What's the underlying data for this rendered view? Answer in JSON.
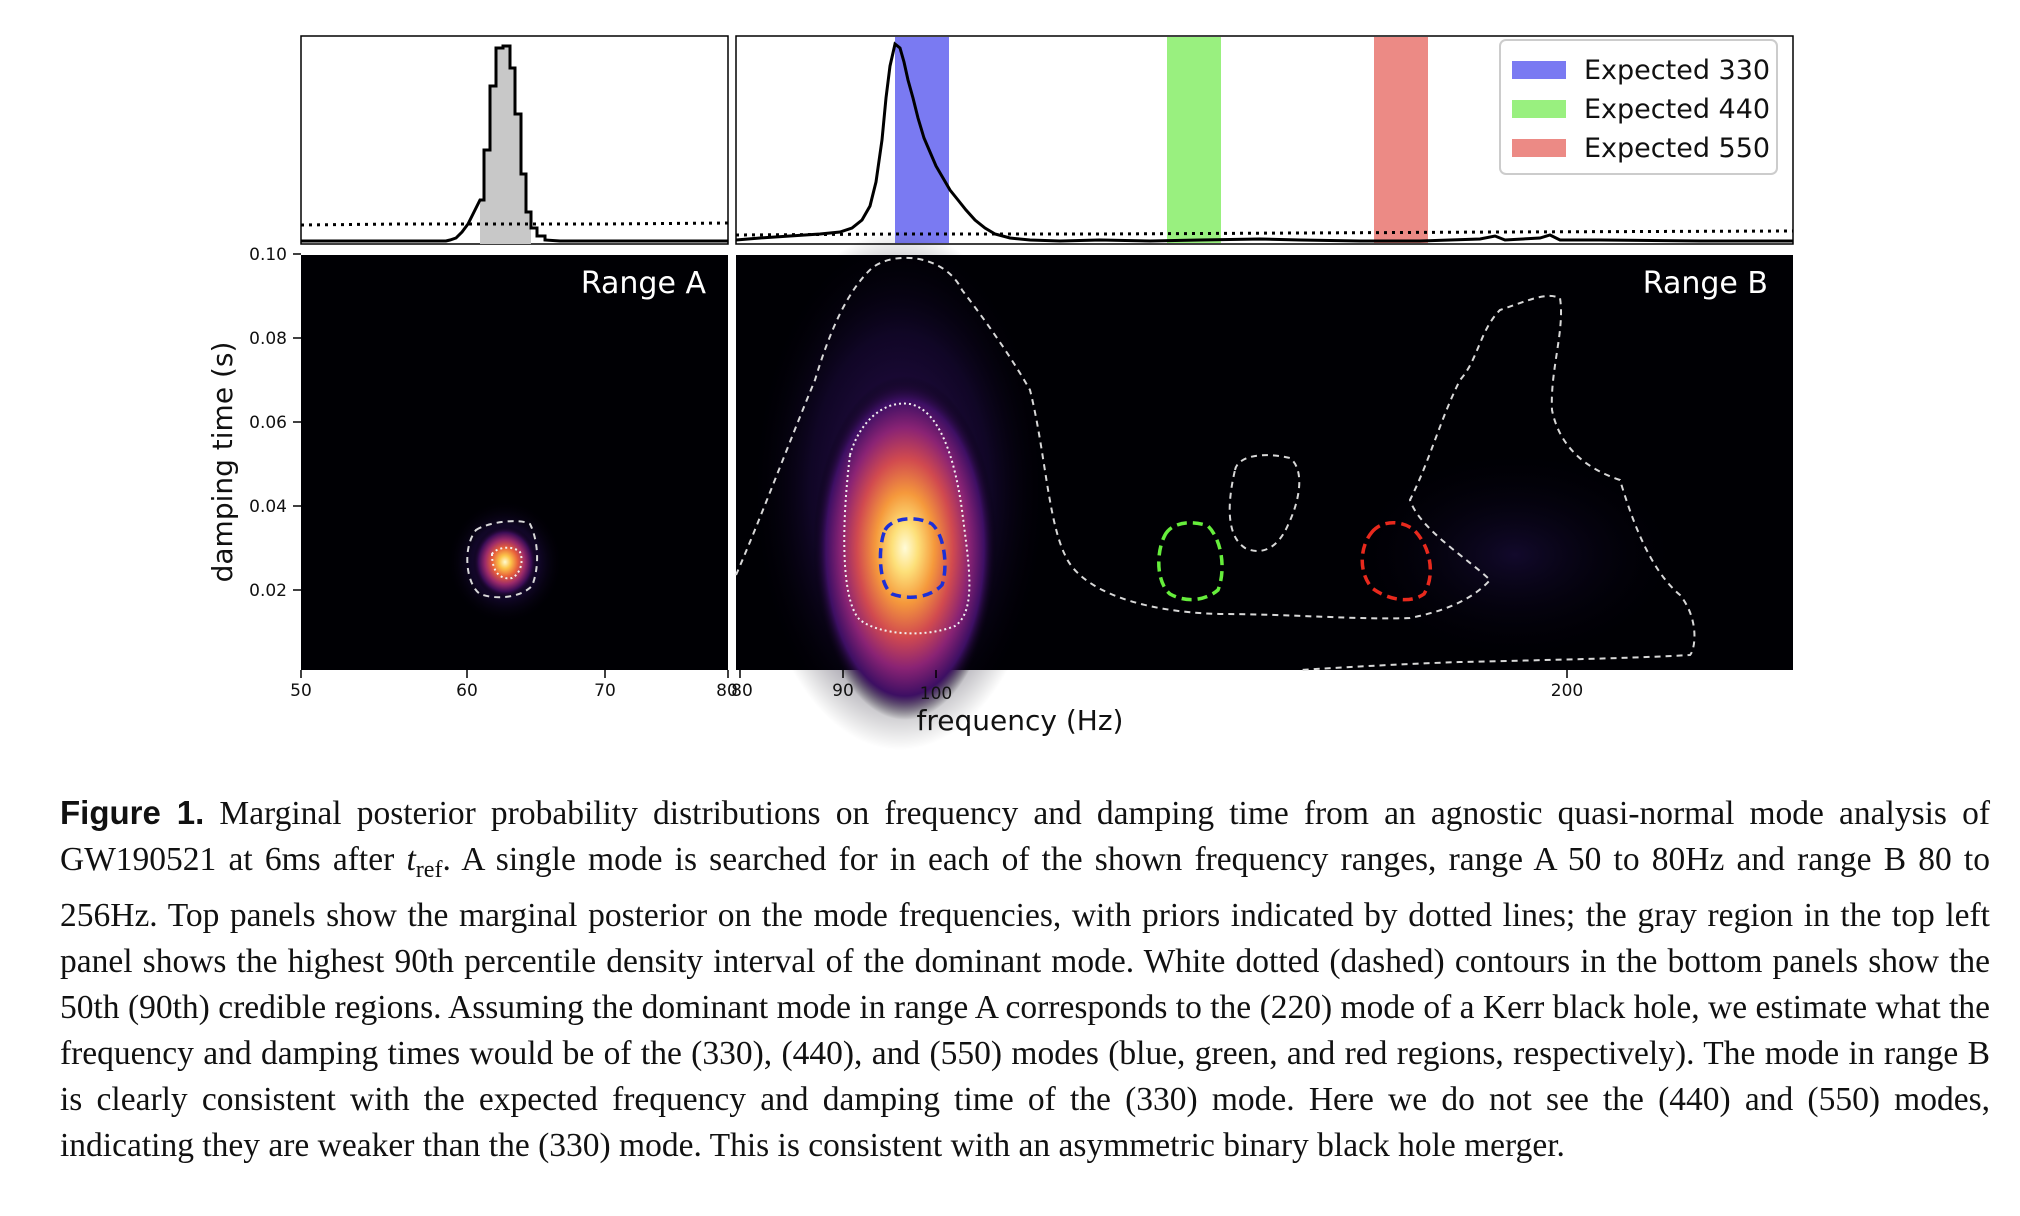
{
  "figure": {
    "panels": {
      "range_a": {
        "label": "Range A",
        "xlim": [
          50,
          80
        ]
      },
      "range_b": {
        "label": "Range B",
        "xlim": [
          80,
          256
        ]
      }
    },
    "legend": [
      {
        "label": "Expected 330",
        "color": "#7a7af2"
      },
      {
        "label": "Expected 440",
        "color": "#99f07f"
      },
      {
        "label": "Expected 550",
        "color": "#ec8a85"
      }
    ],
    "x_ticks_a": [
      "50",
      "60",
      "70",
      "80"
    ],
    "x_ticks_b": [
      "80",
      "90",
      "100",
      "200"
    ],
    "y_ticks": [
      "0.10",
      "0.08",
      "0.06",
      "0.04",
      "0.02"
    ],
    "xlabel": "frequency (Hz)",
    "ylabel": "damping time (s)"
  },
  "chart_data": {
    "type": "heatmap",
    "title": "",
    "xlabel": "frequency (Hz)",
    "ylabel": "damping time (s)",
    "ylim": [
      0,
      0.1
    ],
    "panels": [
      {
        "name": "Range A",
        "xlim": [
          50,
          80
        ],
        "peak": {
          "frequency": 62.5,
          "damping_time": 0.026
        },
        "hpd_90_interval": [
          61,
          64
        ]
      },
      {
        "name": "Range B",
        "xlim": [
          80,
          256
        ],
        "peak": {
          "frequency": 98,
          "damping_time": 0.027
        },
        "expected_regions": [
          {
            "mode": "330",
            "frequency_range": [
              95,
              103
            ],
            "damping_time_range": [
              0.018,
              0.035
            ],
            "color": "blue"
          },
          {
            "mode": "440",
            "frequency_range": [
              133,
              141
            ],
            "damping_time_range": [
              0.017,
              0.035
            ],
            "color": "green"
          },
          {
            "mode": "550",
            "frequency_range": [
              162,
              170
            ],
            "damping_time_range": [
              0.016,
              0.035
            ],
            "color": "red"
          }
        ]
      }
    ],
    "top_panel": "marginal posterior on frequency (histogram) with prior shown dotted"
  },
  "caption": {
    "lead": "Figure 1.",
    "part1": " Marginal posterior probability distributions on frequency and damping time from an agnostic quasi-normal mode analysis of GW190521 at 6ms after ",
    "t_var": "t",
    "t_sub": "ref",
    "part2": ". A single mode is searched for in each of the shown frequency ranges, range A 50 to 80Hz and range B 80 to 256Hz. Top panels show the marginal posterior on the mode frequencies, with priors indicated by dotted lines; the gray region in the top left panel shows the highest 90th percentile density interval of the dominant mode. White dotted (dashed) contours in the bottom panels show the 50th (90th) credible regions. Assuming the dominant mode in range A corresponds to the (220) mode of a Kerr black hole, we estimate what the frequency and damping times would be of the (330), (440), and (550) modes (blue, green, and red regions, respectively). The mode in range B is clearly consistent with the expected frequency and damping time of the (330) mode. Here we do not see the (440) and (550) modes, indicating they are weaker than the (330) mode. This is consistent with an asymmetric binary black hole merger."
  }
}
